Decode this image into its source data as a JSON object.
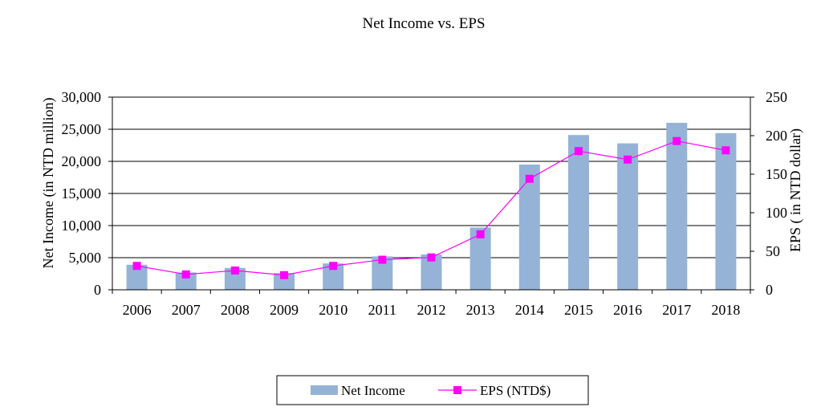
{
  "chart_data": {
    "type": "bar+line",
    "title": "Net Income vs. EPS",
    "categories": [
      "2006",
      "2007",
      "2008",
      "2009",
      "2010",
      "2011",
      "2012",
      "2013",
      "2014",
      "2015",
      "2016",
      "2017",
      "2018"
    ],
    "series": [
      {
        "name": "Net Income",
        "type": "bar",
        "axis": "left",
        "color": "#95b3d7",
        "values": [
          3900,
          2700,
          3400,
          2600,
          4100,
          5200,
          5500,
          9700,
          19500,
          24100,
          22800,
          26000,
          24400
        ]
      },
      {
        "name": "EPS (NTD$)",
        "type": "line",
        "axis": "right",
        "color": "#ff00ff",
        "values": [
          31,
          20,
          25,
          19,
          31,
          39,
          42,
          72,
          144,
          180,
          169,
          193,
          181
        ]
      }
    ],
    "y_left": {
      "label": "Net Income (in NTD million)",
      "ylim": [
        0,
        30000
      ],
      "ticks": [
        0,
        5000,
        10000,
        15000,
        20000,
        25000,
        30000
      ],
      "tick_labels": [
        "0",
        "5,000",
        "10,000",
        "15,000",
        "20,000",
        "25,000",
        "30,000"
      ]
    },
    "y_right": {
      "label": "EPS ( in NTD dollar)",
      "ylim": [
        0,
        250
      ],
      "ticks": [
        0,
        50,
        100,
        150,
        200,
        250
      ],
      "tick_labels": [
        "0",
        "50",
        "100",
        "150",
        "200",
        "250"
      ]
    },
    "grid": true,
    "legend": "bottom"
  }
}
